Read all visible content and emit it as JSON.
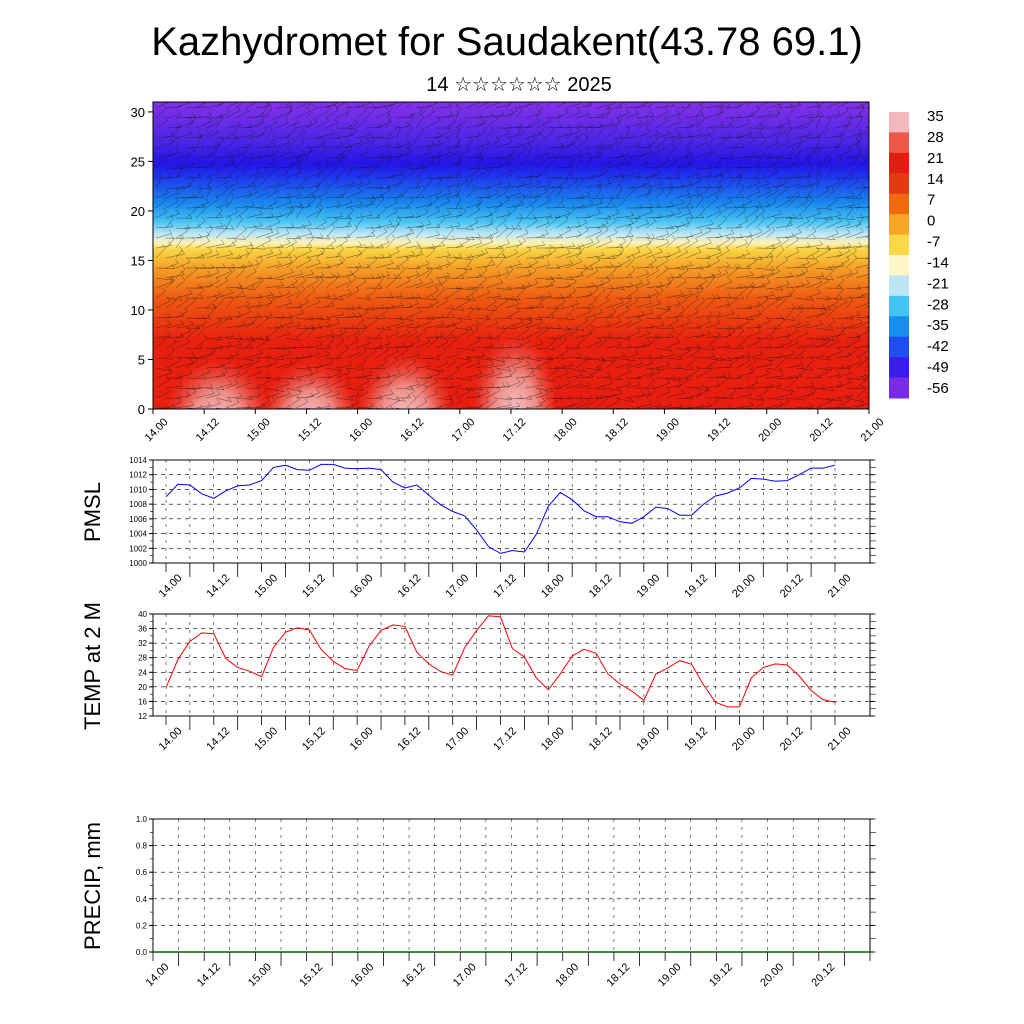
{
  "title": "Kazhydromet for Saudakent(43.78 69.1)",
  "subtitle": "14 ☆☆☆☆☆☆ 2025",
  "time_labels": [
    "14.00",
    "14.12",
    "15.00",
    "15.12",
    "16.00",
    "16.12",
    "17.00",
    "17.12",
    "18.00",
    "18.12",
    "19.00",
    "19.12",
    "20.00",
    "20.12",
    "21.00"
  ],
  "colorbar": {
    "labels": [
      "35",
      "28",
      "21",
      "14",
      "7",
      "0",
      "-7",
      "-14",
      "-21",
      "-28",
      "-35",
      "-42",
      "-49",
      "-56"
    ],
    "colors": [
      "#f2b8bd",
      "#ea5a46",
      "#dd1e10",
      "#e33a12",
      "#f06a10",
      "#f7a52a",
      "#fbd84a",
      "#fdf6c8",
      "#bfe4f4",
      "#44c2f2",
      "#1a8cf0",
      "#1e4ef2",
      "#3a1ee8",
      "#7a2be6"
    ]
  },
  "chart_data": [
    {
      "type": "heatmap",
      "title": "",
      "xlabel": "",
      "ylabel": "",
      "ylim": [
        0,
        31
      ],
      "y_ticks": [
        "0",
        "5",
        "10",
        "15",
        "20",
        "25",
        "30"
      ],
      "x_ticks": [
        "14.00",
        "14.12",
        "15.00",
        "15.12",
        "16.00",
        "16.12",
        "17.00",
        "17.12",
        "18.00",
        "18.12",
        "19.00",
        "19.12",
        "20.00",
        "20.12",
        "21.00"
      ],
      "value_range": [
        -56,
        35
      ],
      "overlay": "wind barbs",
      "legend": "right colorbar"
    },
    {
      "type": "line",
      "ylabel": "PMSL",
      "ylim": [
        1000,
        1014
      ],
      "y_ticks": [
        "1000",
        "1002",
        "1004",
        "1006",
        "1008",
        "1010",
        "1012",
        "1014"
      ],
      "x_ticks": [
        "14.00",
        "14.12",
        "15.00",
        "15.12",
        "16.00",
        "16.12",
        "17.00",
        "17.12",
        "18.00",
        "18.12",
        "19.00",
        "19.12",
        "20.00",
        "20.12",
        "21.00"
      ],
      "grid": true,
      "color": "#0000ff",
      "x": [
        0,
        3,
        6,
        9,
        12,
        15,
        18,
        21,
        24,
        27,
        30,
        33,
        36,
        39,
        42,
        45,
        48,
        51,
        54,
        57,
        60,
        63,
        66,
        69,
        72,
        75,
        78,
        81,
        84,
        87,
        90,
        93,
        96,
        99,
        102,
        105,
        108,
        111,
        114,
        117,
        120,
        123,
        126,
        129,
        132,
        135,
        138,
        141,
        144,
        147,
        150,
        153,
        156,
        159,
        162,
        165,
        168
      ],
      "values": [
        1009,
        1010.7,
        1010.6,
        1009.4,
        1008.8,
        1009.8,
        1010.5,
        1010.6,
        1011.2,
        1013,
        1013.3,
        1012.7,
        1012.6,
        1013.4,
        1013.4,
        1012.9,
        1012.8,
        1012.9,
        1012.7,
        1011,
        1010.2,
        1010.6,
        1009.2,
        1007.9,
        1007,
        1006.4,
        1004.5,
        1002.2,
        1001.3,
        1001.7,
        1001.5,
        1003.9,
        1007.7,
        1009.6,
        1008.6,
        1007.1,
        1006.3,
        1006.3,
        1005.6,
        1005.4,
        1006.3,
        1007.6,
        1007.4,
        1006.5,
        1006.5,
        1008,
        1009.1,
        1009.5,
        1010.2,
        1011.5,
        1011.4,
        1011.1,
        1011.2,
        1012,
        1012.9,
        1012.9,
        1013.3
      ]
    },
    {
      "type": "line",
      "ylabel": "TEMP at 2 M",
      "ylim": [
        12,
        40
      ],
      "y_ticks": [
        "12",
        "16",
        "20",
        "24",
        "28",
        "32",
        "36",
        "40"
      ],
      "x_ticks": [
        "14.00",
        "14.12",
        "15.00",
        "15.12",
        "16.00",
        "16.12",
        "17.00",
        "17.12",
        "18.00",
        "18.12",
        "19.00",
        "19.12",
        "20.00",
        "20.12",
        "21.00"
      ],
      "grid": true,
      "color": "#ff0000",
      "x": [
        0,
        3,
        6,
        9,
        12,
        15,
        18,
        21,
        24,
        27,
        30,
        33,
        36,
        39,
        42,
        45,
        48,
        51,
        54,
        57,
        60,
        63,
        66,
        69,
        72,
        75,
        78,
        81,
        84,
        87,
        90,
        93,
        96,
        99,
        102,
        105,
        108,
        111,
        114,
        117,
        120,
        123,
        126,
        129,
        132,
        135,
        138,
        141,
        144,
        147,
        150,
        153,
        156,
        159,
        162,
        165,
        168
      ],
      "values": [
        19.8,
        27.5,
        32.5,
        34.8,
        34.6,
        27.8,
        25.3,
        24.3,
        22.8,
        30.8,
        35,
        36.2,
        35.6,
        30.2,
        27,
        25,
        24.5,
        31.2,
        35.5,
        37,
        36.6,
        29.5,
        26.3,
        24.2,
        23.2,
        30.8,
        35.5,
        39.5,
        39.2,
        30.5,
        28.2,
        22.5,
        19.2,
        23.5,
        28.5,
        30.3,
        29.2,
        23.5,
        20.8,
        18.8,
        16.3,
        23.5,
        25.2,
        27.2,
        26.2,
        20.5,
        15.8,
        14.5,
        14.5,
        22.5,
        25.3,
        26.3,
        26,
        23,
        19,
        16.5,
        15.8
      ]
    },
    {
      "type": "line",
      "ylabel": "PRECIP, mm",
      "ylim": [
        0,
        1
      ],
      "y_ticks": [
        "0.0",
        "0.2",
        "0.4",
        "0.6",
        "0.8",
        "1.0"
      ],
      "x_ticks": [
        "14.00",
        "14.12",
        "15.00",
        "15.12",
        "16.00",
        "16.12",
        "17.00",
        "17.12",
        "18.00",
        "18.12",
        "19.00",
        "19.12",
        "20.00",
        "20.12",
        "21.00"
      ],
      "grid": true,
      "color": "#006400",
      "x": [
        0,
        168
      ],
      "values": [
        0,
        0
      ]
    }
  ]
}
